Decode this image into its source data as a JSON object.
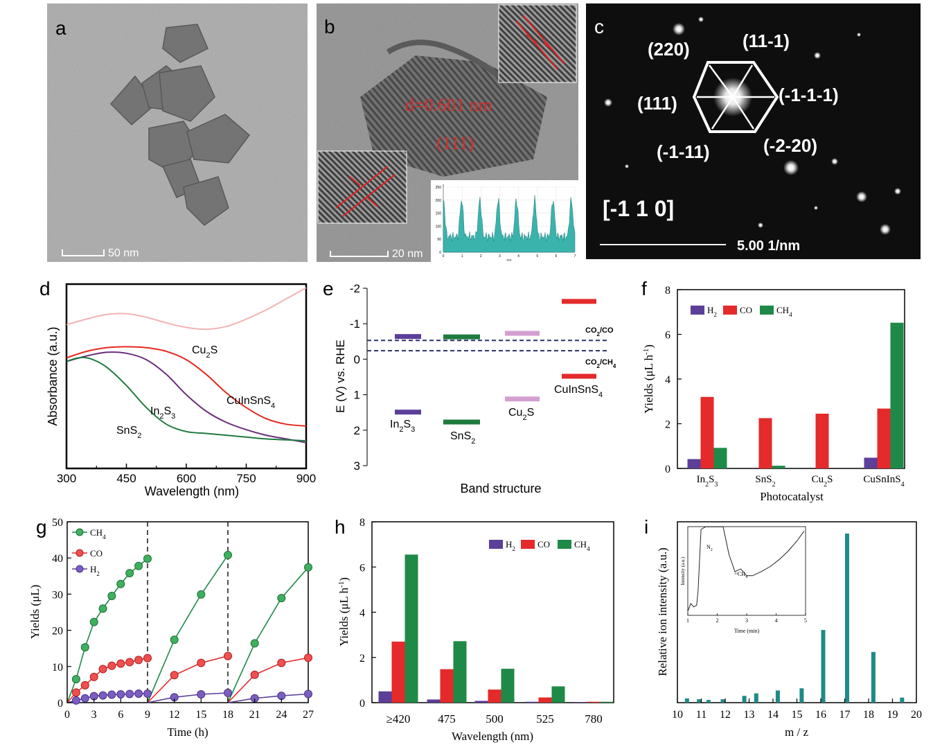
{
  "panels": {
    "a": {
      "letter": "a",
      "scale_text": "50 nm"
    },
    "b": {
      "letter": "b",
      "spacing_label": "d=0.601 nm",
      "plane_label": "(111)",
      "scale_text": "20 nm",
      "inset_yticks": [
        "250",
        "200",
        "150",
        "100",
        "50",
        "0"
      ],
      "inset_xticks": [
        "0",
        "1",
        "2",
        "3",
        "4",
        "5",
        "6",
        "7"
      ],
      "inset_xlabel": "nm"
    },
    "c": {
      "letter": "c",
      "spots": [
        "(220)",
        "(11-1)",
        "(111)",
        "(-1-1-1)",
        "(-1-11)",
        "(-2-20)"
      ],
      "zone_axis": "[-1 1 0]",
      "scale_text": "5.00 1/nm"
    },
    "d": {
      "letter": "d"
    },
    "e": {
      "letter": "e"
    },
    "f": {
      "letter": "f"
    },
    "g": {
      "letter": "g"
    },
    "h": {
      "letter": "h"
    },
    "i": {
      "letter": "i"
    }
  },
  "colors": {
    "h2": "#5b3f99",
    "co": "#e42a2a",
    "ch4": "#1f8a47",
    "cu2s": "#f2b3b5",
    "cuinsns4": "#e4281e",
    "in2s3": "#6b2d7c",
    "sns2": "#1e7a3e",
    "cu2s_level": "#d39fd0",
    "teal": "#1f8a87",
    "dash": "#2b2e6e"
  },
  "chart_data": [
    {
      "panel": "d",
      "type": "line",
      "xlabel": "Wavelength (nm)",
      "ylabel": "Absorbance (a.u.)",
      "xlim": [
        300,
        900
      ],
      "xticks": [
        "300",
        "450",
        "600",
        "750",
        "900"
      ],
      "series": [
        {
          "name": "Cu2S",
          "x": [
            300,
            350,
            400,
            450,
            500,
            550,
            600,
            650,
            700,
            750,
            800,
            850,
            900
          ],
          "y": [
            0.78,
            0.81,
            0.835,
            0.84,
            0.82,
            0.79,
            0.765,
            0.755,
            0.77,
            0.81,
            0.86,
            0.92,
            0.98
          ]
        },
        {
          "name": "CuInSnS4",
          "x": [
            300,
            350,
            400,
            450,
            500,
            550,
            600,
            650,
            700,
            750,
            800,
            850,
            900
          ],
          "y": [
            0.6,
            0.635,
            0.655,
            0.66,
            0.655,
            0.635,
            0.59,
            0.51,
            0.41,
            0.33,
            0.27,
            0.24,
            0.23
          ]
        },
        {
          "name": "In2S3",
          "x": [
            300,
            350,
            400,
            450,
            500,
            550,
            600,
            650,
            700,
            750,
            800,
            850,
            900
          ],
          "y": [
            0.58,
            0.61,
            0.63,
            0.625,
            0.59,
            0.51,
            0.4,
            0.31,
            0.25,
            0.21,
            0.18,
            0.16,
            0.14
          ]
        },
        {
          "name": "SnS2",
          "x": [
            300,
            330,
            360,
            400,
            450,
            500,
            550,
            600,
            650,
            700,
            750,
            800,
            850,
            900
          ],
          "y": [
            0.58,
            0.6,
            0.595,
            0.55,
            0.45,
            0.33,
            0.24,
            0.2,
            0.19,
            0.18,
            0.17,
            0.16,
            0.155,
            0.15
          ]
        }
      ]
    },
    {
      "panel": "e",
      "type": "bar",
      "title": "",
      "xlabel": "Band structure",
      "ylabel": "E (V) vs. RHE",
      "ylim": [
        3,
        -2
      ],
      "yticks": [
        "-2",
        "-1",
        "0",
        "1",
        "2",
        "3"
      ],
      "materials": [
        "In2S3",
        "SnS2",
        "Cu2S",
        "CuInSnS4"
      ],
      "cb": [
        -0.64,
        -0.63,
        -0.73,
        -1.63
      ],
      "vb": [
        1.49,
        1.77,
        1.12,
        0.48
      ],
      "redox": [
        {
          "name": "CO2/CO",
          "value": -0.53
        },
        {
          "name": "CO2/CH4",
          "value": -0.24
        }
      ]
    },
    {
      "panel": "f",
      "type": "bar",
      "xlabel": "Photocatalyst",
      "ylabel": "Yields (μL h⁻¹)",
      "ylim": [
        0,
        8
      ],
      "yticks": [
        "0",
        "2",
        "4",
        "6",
        "8"
      ],
      "categories": [
        "In2S3",
        "SnS2",
        "Cu2S",
        "CuSnInS4"
      ],
      "series": [
        {
          "name": "H2",
          "values": [
            0.42,
            0.0,
            0.0,
            0.48
          ]
        },
        {
          "name": "CO",
          "values": [
            3.2,
            2.25,
            2.45,
            2.68
          ]
        },
        {
          "name": "CH4",
          "values": [
            0.92,
            0.12,
            0.0,
            6.52
          ]
        }
      ]
    },
    {
      "panel": "g",
      "type": "line",
      "xlabel": "Time (h)",
      "ylabel": "Yields (μL)",
      "xlim": [
        0,
        27
      ],
      "ylim": [
        0,
        50
      ],
      "xticks": [
        "0",
        "3",
        "6",
        "9",
        "12",
        "15",
        "18",
        "21",
        "24",
        "27"
      ],
      "yticks": [
        "0",
        "10",
        "20",
        "30",
        "40",
        "50"
      ],
      "cycle_boundaries": [
        9,
        18
      ],
      "series": [
        {
          "name": "CH4",
          "x": [
            0,
            1,
            2,
            3,
            4,
            5,
            6,
            7,
            8,
            9,
            9,
            12,
            15,
            18,
            18,
            21,
            24,
            27
          ],
          "y": [
            0,
            6.5,
            15.3,
            22.3,
            26,
            29.5,
            32.8,
            35.8,
            37.8,
            39.8,
            0,
            17.4,
            29.9,
            40.8,
            0,
            16.4,
            28.9,
            37.4
          ]
        },
        {
          "name": "CO",
          "x": [
            0,
            1,
            2,
            3,
            4,
            5,
            6,
            7,
            8,
            9,
            9,
            12,
            15,
            18,
            18,
            21,
            24,
            27
          ],
          "y": [
            0,
            2.8,
            4.8,
            7.1,
            9.3,
            10.2,
            10.8,
            11.2,
            11.8,
            12.3,
            0,
            7.6,
            11.0,
            12.9,
            0,
            7.7,
            11.0,
            12.4
          ]
        },
        {
          "name": "H2",
          "x": [
            0,
            1,
            2,
            3,
            4,
            5,
            6,
            7,
            8,
            9,
            9,
            12,
            15,
            18,
            18,
            21,
            24,
            27
          ],
          "y": [
            0,
            0.6,
            1.2,
            1.8,
            2.0,
            2.2,
            2.3,
            2.4,
            2.5,
            2.5,
            0,
            1.5,
            2.3,
            2.7,
            0,
            1.2,
            1.9,
            2.4
          ]
        }
      ]
    },
    {
      "panel": "h",
      "type": "bar",
      "xlabel": "Wavelength (nm)",
      "ylabel": "Yields (μL h⁻¹)",
      "ylim": [
        0,
        8
      ],
      "yticks": [
        "0",
        "2",
        "4",
        "6",
        "8"
      ],
      "categories": [
        "≥420",
        "475",
        "500",
        "525",
        "780"
      ],
      "series": [
        {
          "name": "H2",
          "values": [
            0.5,
            0.14,
            0.08,
            0.04,
            0.03
          ]
        },
        {
          "name": "CO",
          "values": [
            2.7,
            1.48,
            0.58,
            0.23,
            0.04
          ]
        },
        {
          "name": "CH4",
          "values": [
            6.55,
            2.72,
            1.5,
            0.72,
            0.04
          ]
        }
      ]
    },
    {
      "panel": "i",
      "type": "bar",
      "xlabel": "m / z",
      "ylabel": "Relative ion intensity (a.u.)",
      "xlim": [
        10,
        20
      ],
      "xticks": [
        "10",
        "11",
        "12",
        "13",
        "14",
        "15",
        "16",
        "17",
        "18",
        "19",
        "20"
      ],
      "x": [
        10.4,
        10.9,
        11.3,
        11.9,
        12.8,
        13.3,
        14.2,
        15.2,
        16.1,
        17.1,
        18.2,
        19.4
      ],
      "values": [
        0.025,
        0.02,
        0.016,
        0.02,
        0.04,
        0.055,
        0.072,
        0.085,
        0.43,
        1.0,
        0.3,
        0.03
      ],
      "inset": {
        "xlabel": "Time (min)",
        "ylabel": "Intensity (a.u.)",
        "xlim": [
          1,
          5
        ],
        "xticks": [
          "1",
          "2",
          "3",
          "4",
          "5"
        ],
        "annotations": [
          "N2",
          "13CH4"
        ],
        "x": [
          1.0,
          1.1,
          1.2,
          1.3,
          1.35,
          1.45,
          1.6,
          1.8,
          2.0,
          2.2,
          2.4,
          2.6,
          2.8,
          3.0,
          3.2,
          3.5,
          3.8,
          4.1,
          4.4,
          4.7,
          4.95
        ],
        "y": [
          0.05,
          0.14,
          0.1,
          0.12,
          0.3,
          1.02,
          1.05,
          1.05,
          1.05,
          1.05,
          0.72,
          0.52,
          0.55,
          0.47,
          0.47,
          0.52,
          0.58,
          0.66,
          0.76,
          0.88,
          1.0
        ]
      }
    }
  ]
}
